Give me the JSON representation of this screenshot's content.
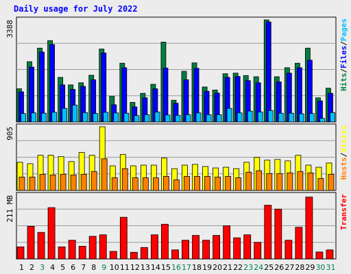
{
  "title": "Daily usage for July 2022",
  "chart_data": [
    {
      "type": "bar",
      "categories": [
        "1",
        "2",
        "3",
        "4",
        "5",
        "6",
        "7",
        "8",
        "9",
        "10",
        "11",
        "12",
        "13",
        "14",
        "15",
        "16",
        "17",
        "18",
        "19",
        "20",
        "21",
        "22",
        "23",
        "24",
        "25",
        "26",
        "27",
        "28",
        "29",
        "30",
        "31"
      ],
      "weekend": [
        false,
        false,
        true,
        false,
        false,
        false,
        false,
        false,
        true,
        false,
        false,
        false,
        false,
        false,
        false,
        true,
        true,
        false,
        false,
        false,
        false,
        false,
        true,
        true,
        false,
        false,
        false,
        false,
        false,
        true,
        true
      ],
      "ylabel": "Hits/Files/Pages",
      "ymax_label": "3388",
      "ylim": [
        0,
        3388
      ],
      "series": [
        {
          "name": "Hits",
          "color": "#008040",
          "values": [
            1100,
            2000,
            2450,
            2700,
            1480,
            1230,
            1300,
            1550,
            2420,
            850,
            1950,
            650,
            950,
            1250,
            2650,
            720,
            1680,
            1960,
            1160,
            1060,
            1600,
            1620,
            1540,
            1500,
            3388,
            1500,
            1800,
            1950,
            2450,
            800,
            1120
          ]
        },
        {
          "name": "Files",
          "color": "#0000ff",
          "values": [
            1000,
            1820,
            2320,
            2570,
            1230,
            1080,
            1180,
            1400,
            2290,
            570,
            1800,
            500,
            800,
            1100,
            1790,
            620,
            1400,
            1780,
            1020,
            960,
            1480,
            1510,
            1370,
            1300,
            3320,
            1330,
            1620,
            1800,
            2050,
            700,
            950
          ]
        },
        {
          "name": "Pages",
          "color": "#00c0ff",
          "values": [
            280,
            300,
            290,
            320,
            450,
            560,
            310,
            280,
            320,
            300,
            290,
            210,
            240,
            330,
            230,
            220,
            240,
            300,
            240,
            240,
            450,
            300,
            360,
            330,
            380,
            290,
            290,
            270,
            280,
            120,
            310
          ]
        }
      ]
    },
    {
      "type": "bar",
      "categories": [
        "1",
        "2",
        "3",
        "4",
        "5",
        "6",
        "7",
        "8",
        "9",
        "10",
        "11",
        "12",
        "13",
        "14",
        "15",
        "16",
        "17",
        "18",
        "19",
        "20",
        "21",
        "22",
        "23",
        "24",
        "25",
        "26",
        "27",
        "28",
        "29",
        "30",
        "31"
      ],
      "ylabel": "Hosts/Visits",
      "ymax_label": "905",
      "ylim": [
        0,
        905
      ],
      "series": [
        {
          "name": "Visits",
          "color": "#ffff00",
          "values": [
            400,
            380,
            500,
            500,
            480,
            410,
            540,
            500,
            905,
            350,
            510,
            350,
            360,
            360,
            460,
            310,
            360,
            370,
            340,
            320,
            330,
            310,
            400,
            470,
            430,
            440,
            420,
            500,
            360,
            330,
            390
          ]
        },
        {
          "name": "Hosts",
          "color": "#ff8000",
          "values": [
            190,
            190,
            230,
            220,
            230,
            220,
            230,
            270,
            450,
            180,
            310,
            180,
            180,
            180,
            200,
            150,
            200,
            200,
            200,
            190,
            200,
            180,
            260,
            280,
            240,
            240,
            250,
            270,
            250,
            170,
            230
          ]
        }
      ]
    },
    {
      "type": "bar",
      "categories": [
        "1",
        "2",
        "3",
        "4",
        "5",
        "6",
        "7",
        "8",
        "9",
        "10",
        "11",
        "12",
        "13",
        "14",
        "15",
        "16",
        "17",
        "18",
        "19",
        "20",
        "21",
        "22",
        "23",
        "24",
        "25",
        "26",
        "27",
        "28",
        "29",
        "30",
        "31"
      ],
      "ylabel": "Transfer",
      "ymax_label": "211 MB",
      "ylim": [
        0,
        211
      ],
      "series": [
        {
          "name": "Transfer",
          "color": "#ff0000",
          "values": [
            40,
            108,
            88,
            170,
            40,
            62,
            42,
            75,
            80,
            25,
            138,
            22,
            38,
            80,
            115,
            30,
            62,
            78,
            62,
            78,
            110,
            70,
            80,
            55,
            178,
            165,
            62,
            105,
            205,
            23,
            30
          ]
        }
      ]
    }
  ]
}
